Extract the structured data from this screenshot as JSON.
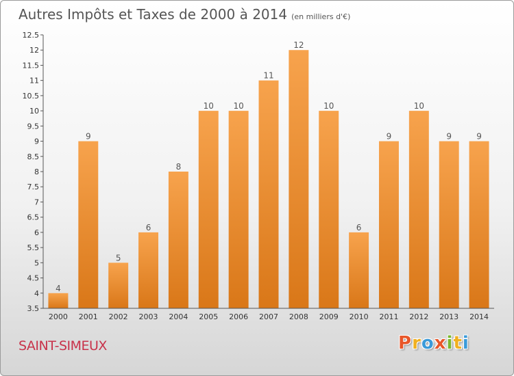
{
  "chart_data": {
    "type": "bar",
    "title": "Autres Impôts et Taxes de 2000 à 2014",
    "subtitle": "(en milliers d'€)",
    "categories": [
      "2000",
      "2001",
      "2002",
      "2003",
      "2004",
      "2005",
      "2006",
      "2007",
      "2008",
      "2009",
      "2010",
      "2011",
      "2012",
      "2013",
      "2014"
    ],
    "values": [
      4,
      9,
      5,
      6,
      8,
      10,
      10,
      11,
      12,
      10,
      6,
      9,
      10,
      9,
      9
    ],
    "data_labels": [
      "4",
      "9",
      "5",
      "6",
      "8",
      "10",
      "10",
      "11",
      "12",
      "10",
      "6",
      "9",
      "10",
      "9",
      "9"
    ],
    "ylim": [
      3.5,
      12.5
    ],
    "yticks": [
      3.5,
      4,
      4.5,
      5,
      5.5,
      6,
      6.5,
      7,
      7.5,
      8,
      8.5,
      9,
      9.5,
      10,
      10.5,
      11,
      11.5,
      12,
      12.5
    ],
    "ytick_labels": [
      "3.5",
      "4",
      "4.5",
      "5",
      "5.5",
      "6",
      "6.5",
      "7",
      "7.5",
      "8",
      "8.5",
      "9",
      "9.5",
      "10",
      "10.5",
      "11",
      "11.5",
      "12",
      "12.5"
    ],
    "xlabel": "",
    "ylabel": "",
    "grid": false,
    "bar_color_top": "#f7a34d",
    "bar_color_bottom": "#d97718"
  },
  "footer": {
    "place_name": "SAINT-SIMEUX",
    "logo_letters": [
      "P",
      "r",
      "o",
      "x",
      "i",
      "t",
      "i"
    ],
    "logo_colors": [
      "#e8572a",
      "#f0b020",
      "#3a9ad9",
      "#e8572a",
      "#7ab82e",
      "#f0b020",
      "#3a9ad9"
    ]
  }
}
